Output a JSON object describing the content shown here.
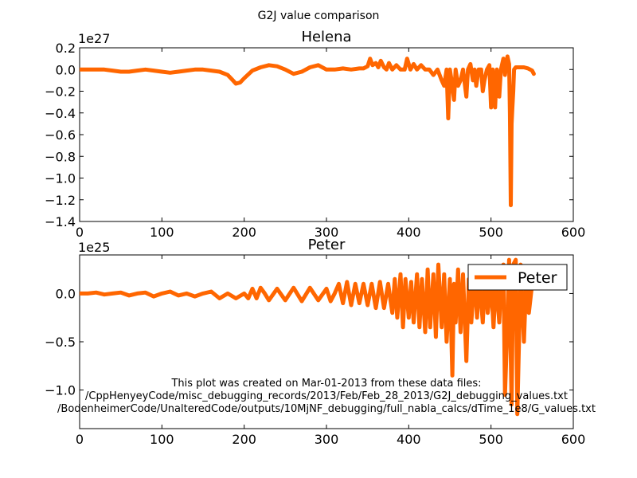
{
  "figure": {
    "title": "G2J value comparison",
    "footnote": [
      "This plot was created on Mar-01-2013 from these data files:",
      "/CppHenyeyCode/misc_debugging_records/2013/Feb/Feb_28_2013/G2J_debugging_values.txt",
      "/BodenheimerCode/UnalteredCode/outputs/10MjNF_debugging/full_nabla_calcs/dTime_1e8/G_values.txt"
    ]
  },
  "chart_data": [
    {
      "type": "line",
      "title": "Helena",
      "xlabel": "",
      "ylabel": "",
      "xlim": [
        0,
        600
      ],
      "ylim": [
        -1.4,
        0.2
      ],
      "xticks": [
        "0",
        "100",
        "200",
        "300",
        "400",
        "500",
        "600"
      ],
      "yticks": [
        "0.2",
        "0.0",
        "−0.2",
        "−0.4",
        "−0.6",
        "−0.8",
        "−1.0",
        "−1.2",
        "−1.4"
      ],
      "y_offset_label": "1e27",
      "grid": false,
      "color": "#ff6600",
      "series": [
        {
          "x": [
            0,
            10,
            20,
            30,
            40,
            50,
            60,
            70,
            80,
            90,
            100,
            110,
            120,
            130,
            140,
            150,
            160,
            170,
            180,
            185,
            190,
            195,
            200,
            210,
            220,
            230,
            240,
            250,
            260,
            270,
            280,
            290,
            300,
            310,
            320,
            330,
            340,
            345,
            350,
            353,
            356,
            360,
            363,
            366,
            370,
            373,
            376,
            380,
            385,
            390,
            395,
            398,
            402,
            406,
            410,
            415,
            420,
            425,
            430,
            435,
            440,
            443,
            446,
            448,
            450,
            452,
            455,
            457,
            460,
            463,
            466,
            470,
            472,
            475,
            478,
            480,
            482,
            485,
            488,
            490,
            492,
            495,
            498,
            500,
            502,
            505,
            507,
            510,
            512,
            515,
            517,
            520,
            522,
            523,
            524,
            525,
            526,
            527,
            528,
            530,
            535,
            540,
            545,
            550,
            552
          ],
          "y": [
            0.0,
            0.0,
            0.0,
            0.0,
            -0.01,
            -0.02,
            -0.02,
            -0.01,
            0.0,
            -0.01,
            -0.02,
            -0.03,
            -0.02,
            -0.01,
            0.0,
            0.0,
            -0.01,
            -0.02,
            -0.05,
            -0.09,
            -0.13,
            -0.12,
            -0.08,
            -0.01,
            0.02,
            0.04,
            0.03,
            0.0,
            -0.04,
            -0.02,
            0.02,
            0.04,
            0.0,
            0.0,
            0.01,
            0.0,
            0.01,
            0.01,
            0.03,
            0.1,
            0.04,
            0.06,
            0.02,
            0.08,
            0.02,
            0.0,
            0.06,
            0.0,
            0.04,
            0.0,
            0.0,
            0.1,
            0.0,
            0.05,
            0.0,
            0.04,
            0.0,
            0.0,
            -0.05,
            0.0,
            -0.1,
            -0.15,
            0.0,
            -0.45,
            0.0,
            -0.1,
            -0.28,
            0.0,
            -0.15,
            -0.1,
            0.0,
            -0.25,
            0.0,
            0.05,
            -0.1,
            0.0,
            -0.15,
            0.0,
            0.0,
            -0.2,
            -0.1,
            0.0,
            0.04,
            -0.35,
            0.0,
            -0.35,
            0.0,
            -0.25,
            0.0,
            0.1,
            -0.05,
            0.12,
            0.05,
            -0.4,
            -1.25,
            -0.5,
            -0.35,
            -0.2,
            0.0,
            0.02,
            0.02,
            0.02,
            0.01,
            -0.01,
            -0.04
          ]
        }
      ]
    },
    {
      "type": "line",
      "title": "Peter",
      "xlabel": "",
      "ylabel": "",
      "xlim": [
        0,
        600
      ],
      "ylim": [
        -1.4,
        0.4
      ],
      "xticks": [
        "0",
        "100",
        "200",
        "300",
        "400",
        "500",
        "600"
      ],
      "yticks": [
        "0.0",
        "−0.5",
        "−1.0"
      ],
      "y_offset_label": "1e25",
      "grid": false,
      "legend": "top-right",
      "color": "#ff6600",
      "series": [
        {
          "name": "Peter",
          "x": [
            0,
            10,
            20,
            30,
            40,
            50,
            60,
            70,
            80,
            90,
            100,
            110,
            120,
            130,
            140,
            150,
            160,
            170,
            180,
            190,
            200,
            205,
            210,
            215,
            220,
            225,
            230,
            240,
            250,
            260,
            270,
            280,
            290,
            300,
            305,
            310,
            315,
            320,
            325,
            330,
            335,
            340,
            345,
            350,
            355,
            360,
            365,
            370,
            375,
            380,
            383,
            386,
            390,
            393,
            396,
            400,
            403,
            406,
            410,
            413,
            416,
            420,
            423,
            426,
            430,
            433,
            436,
            440,
            443,
            446,
            450,
            453,
            455,
            457,
            460,
            463,
            466,
            470,
            473,
            476,
            480,
            483,
            486,
            490,
            493,
            496,
            500,
            503,
            506,
            510,
            513,
            515,
            517,
            520,
            522,
            525,
            527,
            530,
            532,
            534,
            536,
            540,
            543,
            546,
            550
          ],
          "y": [
            0.0,
            0.0,
            0.01,
            -0.01,
            0.0,
            0.01,
            -0.02,
            0.0,
            0.01,
            -0.03,
            0.0,
            0.02,
            -0.02,
            0.0,
            -0.03,
            0.0,
            0.02,
            -0.05,
            0.0,
            -0.05,
            0.0,
            -0.05,
            0.05,
            -0.05,
            0.06,
            0.0,
            -0.07,
            0.05,
            -0.07,
            0.06,
            -0.08,
            0.06,
            -0.07,
            0.05,
            -0.08,
            0.0,
            0.1,
            -0.1,
            0.12,
            -0.12,
            0.1,
            -0.1,
            0.1,
            -0.12,
            0.1,
            -0.15,
            0.12,
            -0.15,
            0.1,
            -0.2,
            0.15,
            -0.25,
            0.2,
            -0.35,
            0.15,
            -0.25,
            0.12,
            -0.3,
            0.2,
            -0.35,
            0.15,
            -0.4,
            0.25,
            -0.35,
            0.2,
            -0.45,
            0.3,
            -0.35,
            0.2,
            -0.5,
            0.15,
            -0.85,
            0.1,
            -0.3,
            0.25,
            -0.4,
            0.2,
            -0.7,
            0.15,
            -0.3,
            0.2,
            -0.25,
            0.15,
            -0.3,
            0.2,
            -0.2,
            0.1,
            -0.35,
            0.15,
            -0.3,
            0.2,
            0.3,
            -1.05,
            -0.3,
            0.35,
            -1.15,
            0.3,
            0.35,
            -1.25,
            -0.5,
            0.3,
            -0.5,
            0.2,
            -0.2,
            0.1
          ]
        }
      ]
    }
  ]
}
